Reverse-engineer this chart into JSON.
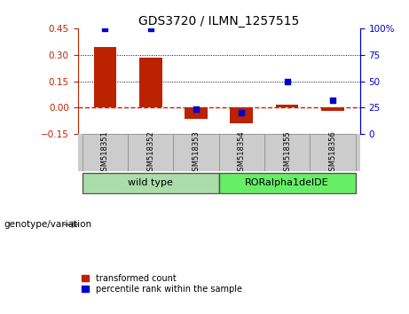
{
  "title": "GDS3720 / ILMN_1257515",
  "categories": [
    "GSM518351",
    "GSM518352",
    "GSM518353",
    "GSM518354",
    "GSM518355",
    "GSM518356"
  ],
  "bar_values": [
    0.345,
    0.285,
    -0.065,
    -0.09,
    0.018,
    -0.02
  ],
  "scatter_values": [
    100,
    100,
    24,
    20,
    50,
    32
  ],
  "left_ylim": [
    -0.15,
    0.45
  ],
  "right_ylim": [
    0,
    100
  ],
  "left_yticks": [
    -0.15,
    0,
    0.15,
    0.3,
    0.45
  ],
  "right_yticks": [
    0,
    25,
    50,
    75,
    100
  ],
  "bar_color": "#bb2200",
  "scatter_color": "#0000cc",
  "hline_color": "#cc2200",
  "dotted_line_values": [
    0.15,
    0.3
  ],
  "wt_color": "#aaddaa",
  "ror_color": "#66ee66",
  "sample_bg_color": "#cccccc",
  "genotype_label": "genotype/variation",
  "legend_bar_label": "transformed count",
  "legend_scatter_label": "percentile rank within the sample",
  "bar_width": 0.5,
  "background_color": "#ffffff",
  "title_fontsize": 10,
  "tick_fontsize": 7.5,
  "label_fontsize": 7.5
}
